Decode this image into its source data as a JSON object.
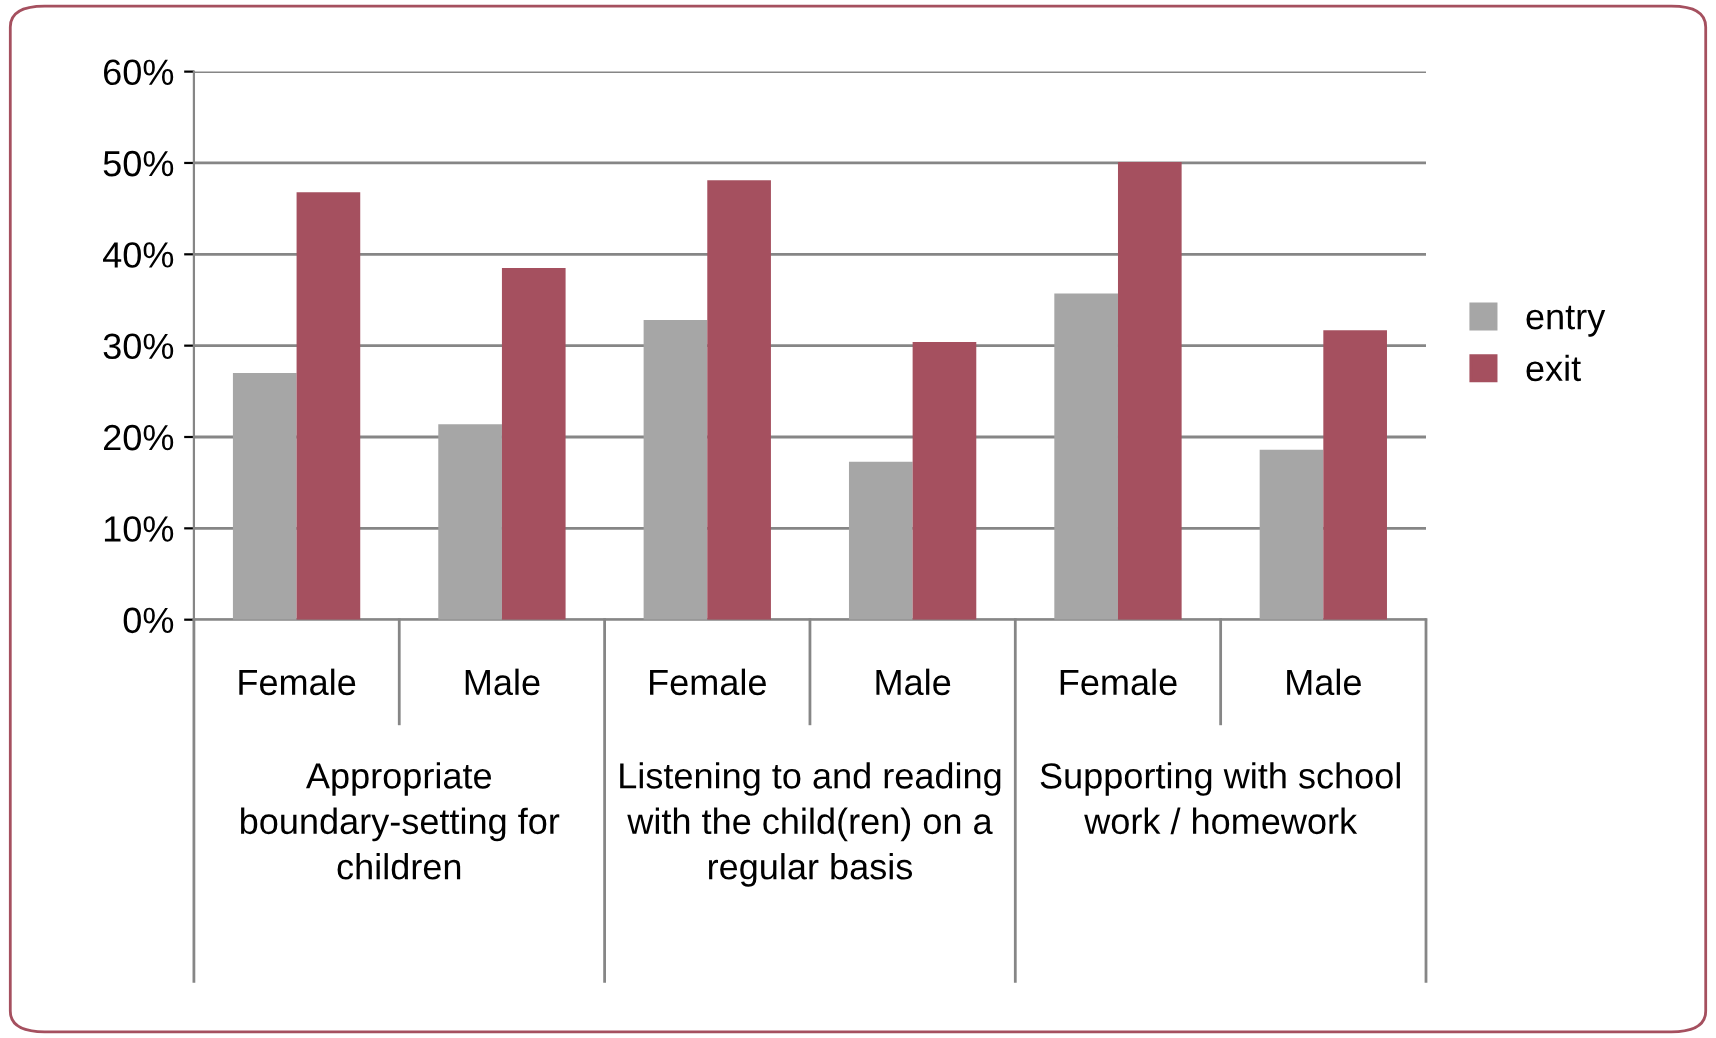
{
  "chart_data": {
    "type": "bar",
    "categories": [
      "Female",
      "Male",
      "Female",
      "Male",
      "Female",
      "Male"
    ],
    "series": [
      {
        "name": "entry",
        "color": "#a6a6a6",
        "values": [
          0.27,
          0.214,
          0.328,
          0.173,
          0.357,
          0.186
        ]
      },
      {
        "name": "exit",
        "color": "#a5505f",
        "values": [
          0.468,
          0.385,
          0.481,
          0.304,
          0.501,
          0.317
        ]
      }
    ],
    "annotations": [
      "Appropriate boundary-setting for children",
      "Listening to and reading with the child(ren) on a regular basis",
      "Supporting with school work / homework"
    ],
    "ylim": [
      0,
      0.6
    ],
    "yticks": [
      {
        "value": 0,
        "label": "0%"
      },
      {
        "value": 0.1,
        "label": "10%"
      },
      {
        "value": 0.2,
        "label": "20%"
      },
      {
        "value": 0.3,
        "label": "30%"
      },
      {
        "value": 0.4,
        "label": "40%"
      },
      {
        "value": 0.5,
        "label": "50%"
      },
      {
        "value": 0.6,
        "label": "60%"
      }
    ],
    "grid": "y",
    "legend": "right"
  }
}
